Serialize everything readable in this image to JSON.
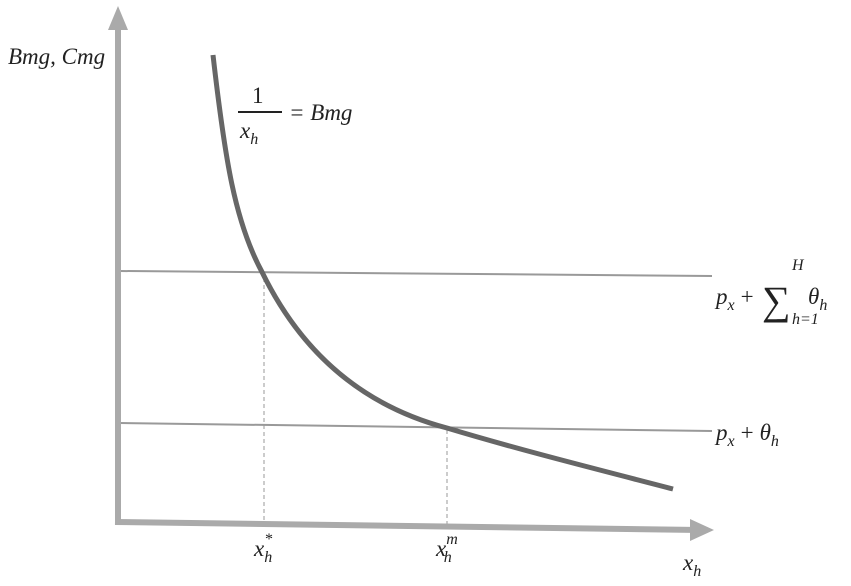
{
  "axes": {
    "y_label": "Bmg, Cmg",
    "x_label": {
      "base": "x",
      "sub": "h"
    }
  },
  "curve_label": {
    "numerator": "1",
    "denominator": {
      "base": "x",
      "sub": "h"
    },
    "rhs": "= Bmg"
  },
  "lines": [
    {
      "label": {
        "p": "p",
        "p_sub": "x",
        "plus": "+",
        "sum": "∑",
        "sum_sup": "H",
        "sum_sub": "h=1",
        "theta": "θ",
        "theta_sub": "h"
      }
    },
    {
      "label": {
        "p": "p",
        "p_sub": "x",
        "plus": "+",
        "theta": "θ",
        "theta_sub": "h"
      }
    }
  ],
  "ticks": [
    {
      "base": "x",
      "sub": "h",
      "sup": "*"
    },
    {
      "base": "x",
      "sub": "h",
      "sup": "m"
    }
  ]
}
